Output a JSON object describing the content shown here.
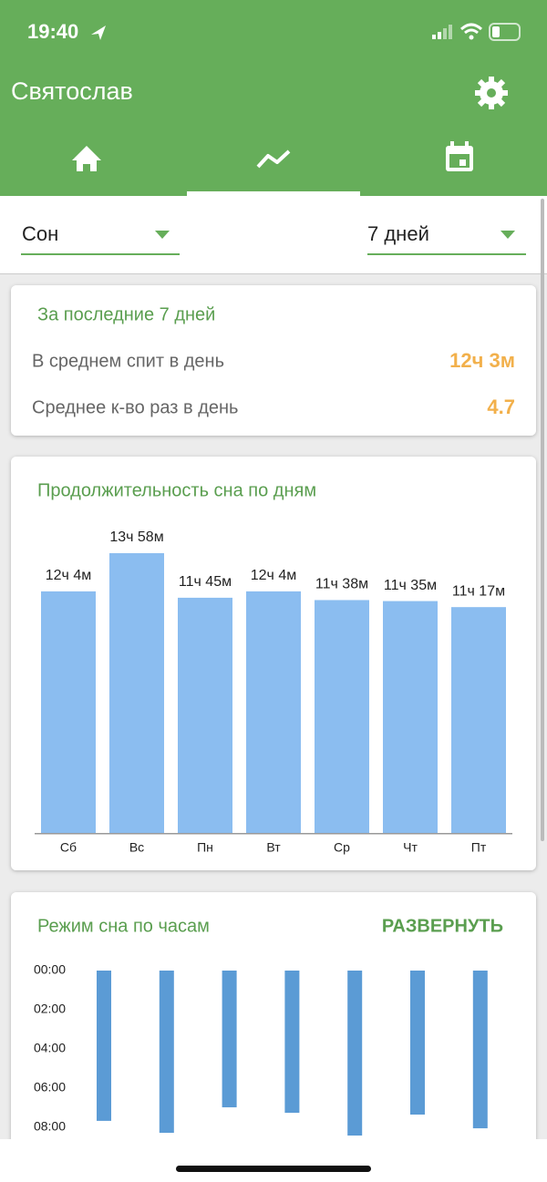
{
  "status_bar": {
    "time": "19:40"
  },
  "header": {
    "title": "Святослав"
  },
  "filters": [
    "Сон",
    "7 дней"
  ],
  "summary": {
    "title": "За последние 7 дней",
    "rows": [
      {
        "label": "В среднем спит в день",
        "value": "12ч 3м"
      },
      {
        "label": "Среднее к-во раз в день",
        "value": "4.7"
      }
    ]
  },
  "chart_data": [
    {
      "type": "bar",
      "title": "Продолжительность сна по дням",
      "color": "#8bbdf0",
      "categories": [
        "Сб",
        "Вс",
        "Пн",
        "Вт",
        "Ср",
        "Чт",
        "Пт"
      ],
      "values": [
        724,
        838,
        705,
        724,
        698,
        695,
        677
      ],
      "value_labels": [
        "12ч 4м",
        "13ч 58м",
        "11ч 45м",
        "12ч 4м",
        "11ч 38м",
        "11ч 35м",
        "11ч 17м"
      ]
    },
    {
      "type": "range-bar",
      "title": "Режим сна по часам",
      "button": "РАЗВЕРНУТЬ",
      "color": "#5b9bd5",
      "start": [
        0,
        0,
        0,
        0,
        0,
        0,
        0
      ],
      "end": [
        7.67,
        8.28,
        6.98,
        7.26,
        8.42,
        7.35,
        8.05
      ],
      "ylim": [
        0,
        8
      ],
      "yticks": [
        {
          "value": 0,
          "label": "00:00"
        },
        {
          "value": 2,
          "label": "02:00"
        },
        {
          "value": 4,
          "label": "04:00"
        },
        {
          "value": 6,
          "label": "06:00"
        },
        {
          "value": 8,
          "label": "08:00"
        }
      ]
    }
  ]
}
